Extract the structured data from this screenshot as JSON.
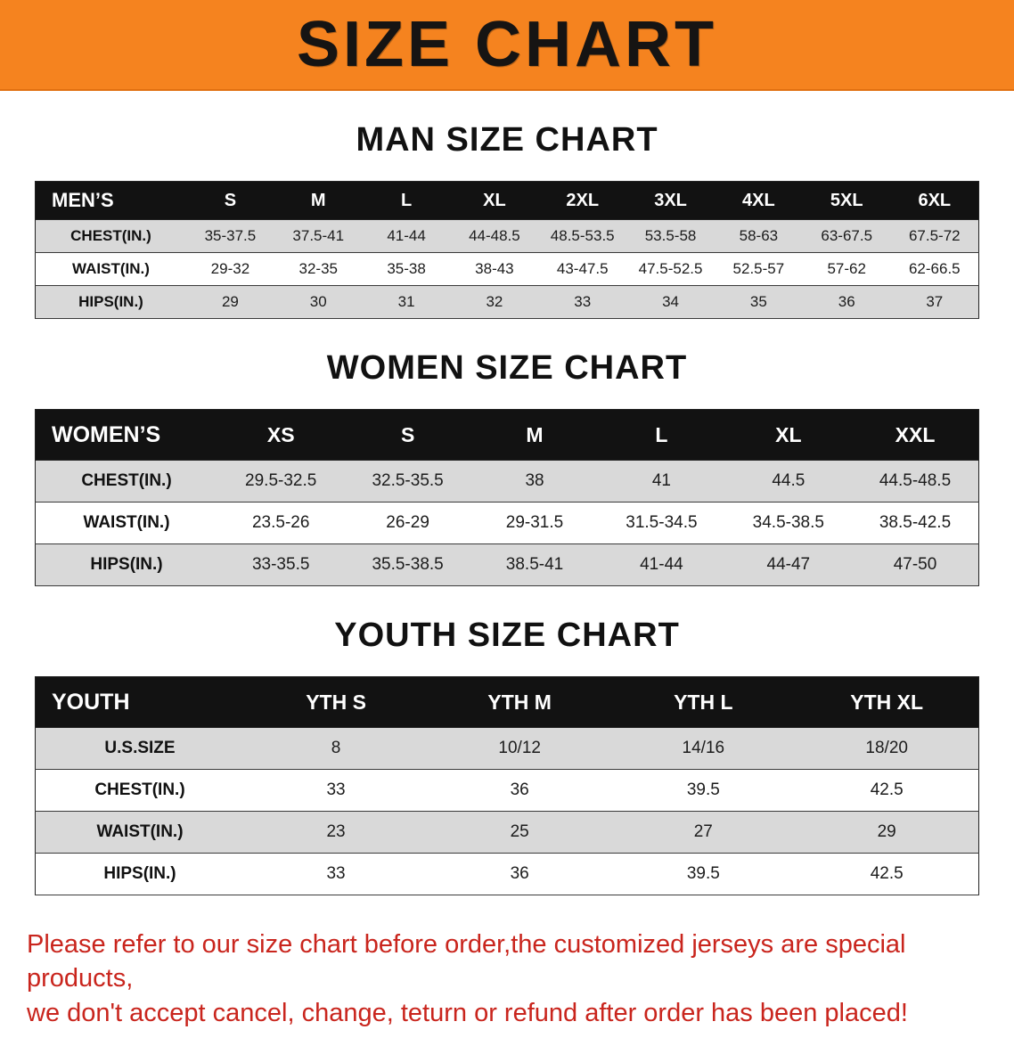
{
  "banner": {
    "title": "SIZE CHART",
    "bg_color": "#f5831f",
    "text_color": "#161413"
  },
  "sections": [
    {
      "heading": "MAN SIZE CHART",
      "table": {
        "header": [
          "MEN’S",
          "S",
          "M",
          "L",
          "XL",
          "2XL",
          "3XL",
          "4XL",
          "5XL",
          "6XL"
        ],
        "rows": [
          [
            "CHEST(IN.)",
            "35-37.5",
            "37.5-41",
            "41-44",
            "44-48.5",
            "48.5-53.5",
            "53.5-58",
            "58-63",
            "63-67.5",
            "67.5-72"
          ],
          [
            "WAIST(IN.)",
            "29-32",
            "32-35",
            "35-38",
            "38-43",
            "43-47.5",
            "47.5-52.5",
            "52.5-57",
            "57-62",
            "62-66.5"
          ],
          [
            "HIPS(IN.)",
            "29",
            "30",
            "31",
            "32",
            "33",
            "34",
            "35",
            "36",
            "37"
          ]
        ]
      }
    },
    {
      "heading": "WOMEN SIZE CHART",
      "table": {
        "header": [
          "WOMEN’S",
          "XS",
          "S",
          "M",
          "L",
          "XL",
          "XXL"
        ],
        "rows": [
          [
            "CHEST(IN.)",
            "29.5-32.5",
            "32.5-35.5",
            "38",
            "41",
            "44.5",
            "44.5-48.5"
          ],
          [
            "WAIST(IN.)",
            "23.5-26",
            "26-29",
            "29-31.5",
            "31.5-34.5",
            "34.5-38.5",
            "38.5-42.5"
          ],
          [
            "HIPS(IN.)",
            "33-35.5",
            "35.5-38.5",
            "38.5-41",
            "41-44",
            "44-47",
            "47-50"
          ]
        ]
      }
    },
    {
      "heading": "YOUTH SIZE CHART",
      "table": {
        "header": [
          "YOUTH",
          "YTH S",
          "YTH M",
          "YTH L",
          "YTH XL"
        ],
        "rows": [
          [
            "U.S.SIZE",
            "8",
            "10/12",
            "14/16",
            "18/20"
          ],
          [
            "CHEST(IN.)",
            "33",
            "36",
            "39.5",
            "42.5"
          ],
          [
            "WAIST(IN.)",
            "23",
            "25",
            "27",
            "29"
          ],
          [
            "HIPS(IN.)",
            "33",
            "36",
            "39.5",
            "42.5"
          ]
        ]
      }
    }
  ],
  "disclaimer": {
    "text_color": "#c9251d",
    "lines": [
      "Please refer to our size chart before order,the customized jerseys are special products,",
      "we don't accept cancel, change, teturn or refund after order has been placed!"
    ]
  }
}
